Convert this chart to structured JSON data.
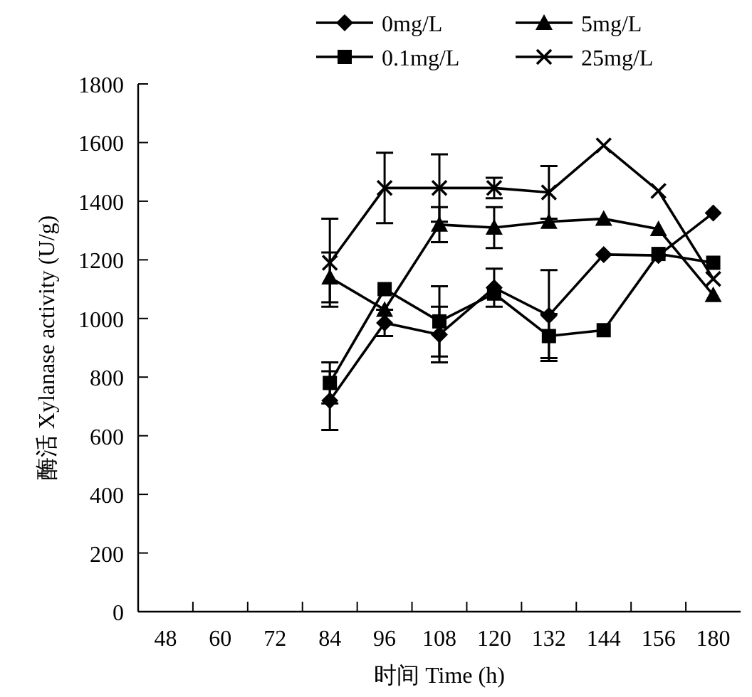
{
  "chart_data": {
    "type": "line",
    "xlabel": "时间 Time (h)",
    "ylabel": "酶活 Xylanase activity (U/g)",
    "categories": [
      "48",
      "60",
      "72",
      "84",
      "96",
      "108",
      "120",
      "132",
      "144",
      "156",
      "180"
    ],
    "ylim": [
      0,
      1800
    ],
    "yticks": [
      0,
      200,
      400,
      600,
      800,
      1000,
      1200,
      1400,
      1600,
      1800
    ],
    "grid": false,
    "legend": "top",
    "line_style": "solid",
    "series": [
      {
        "name": "0mg/L",
        "color": "#000000",
        "marker": "diamond",
        "values": [
          null,
          null,
          null,
          720,
          985,
          945,
          1105,
          1010,
          1218,
          1215,
          1360
        ],
        "errors": [
          null,
          null,
          null,
          100,
          45,
          95,
          65,
          155,
          null,
          null,
          null
        ]
      },
      {
        "name": "0.1mg/L",
        "color": "#000000",
        "marker": "square",
        "values": [
          null,
          null,
          null,
          780,
          1100,
          990,
          1085,
          940,
          960,
          1220,
          1190
        ],
        "errors": [
          null,
          null,
          null,
          70,
          null,
          120,
          null,
          75,
          null,
          null,
          null
        ]
      },
      {
        "name": "5mg/L",
        "color": "#000000",
        "marker": "triangle",
        "values": [
          null,
          null,
          null,
          1140,
          1030,
          1320,
          1310,
          1330,
          1340,
          1305,
          1080
        ],
        "errors": [
          null,
          null,
          null,
          85,
          null,
          60,
          70,
          null,
          null,
          null,
          null
        ]
      },
      {
        "name": "25mg/L",
        "color": "#000000",
        "marker": "cross",
        "values": [
          null,
          null,
          null,
          1190,
          1445,
          1445,
          1445,
          1430,
          1590,
          1435,
          1135
        ],
        "errors": [
          null,
          null,
          null,
          150,
          120,
          115,
          35,
          90,
          null,
          null,
          null
        ]
      }
    ]
  }
}
